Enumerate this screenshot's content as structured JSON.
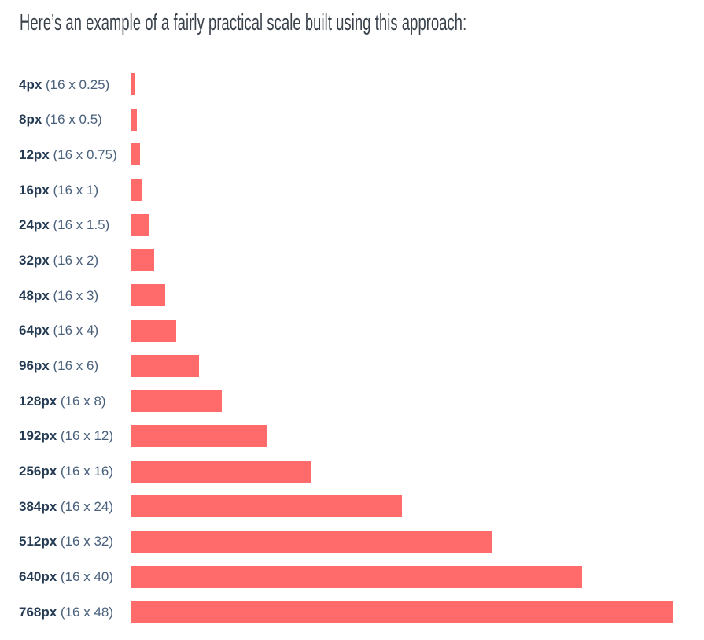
{
  "chart_data": {
    "type": "bar",
    "orientation": "horizontal",
    "title": "Here’s an example of a fairly practical scale built using this approach:",
    "categories": [
      "4px",
      "8px",
      "12px",
      "16px",
      "24px",
      "32px",
      "48px",
      "64px",
      "96px",
      "128px",
      "192px",
      "256px",
      "384px",
      "512px",
      "640px",
      "768px"
    ],
    "category_formulas": [
      "(16 x 0.25)",
      "(16 x 0.5)",
      "(16 x 0.75)",
      "(16 x 1)",
      "(16 x 1.5)",
      "(16 x 2)",
      "(16 x 3)",
      "(16 x 4)",
      "(16 x 6)",
      "(16 x 8)",
      "(16 x 12)",
      "(16 x 16)",
      "(16 x 24)",
      "(16 x 32)",
      "(16 x 40)",
      "(16 x 48)"
    ],
    "values": [
      4,
      8,
      12,
      16,
      24,
      32,
      48,
      64,
      96,
      128,
      192,
      256,
      384,
      512,
      640,
      768
    ],
    "base_unit": 16,
    "xlabel": "",
    "ylabel": "",
    "xlim": [
      0,
      768
    ],
    "grid": false,
    "legend": false,
    "bar_color": "#FF6B6B"
  },
  "colors": {
    "bar": "#FF6B6B",
    "label_size": "#243B53",
    "label_formula": "#4A617C",
    "heading": "#39414B",
    "background": "#FFFFFF"
  }
}
